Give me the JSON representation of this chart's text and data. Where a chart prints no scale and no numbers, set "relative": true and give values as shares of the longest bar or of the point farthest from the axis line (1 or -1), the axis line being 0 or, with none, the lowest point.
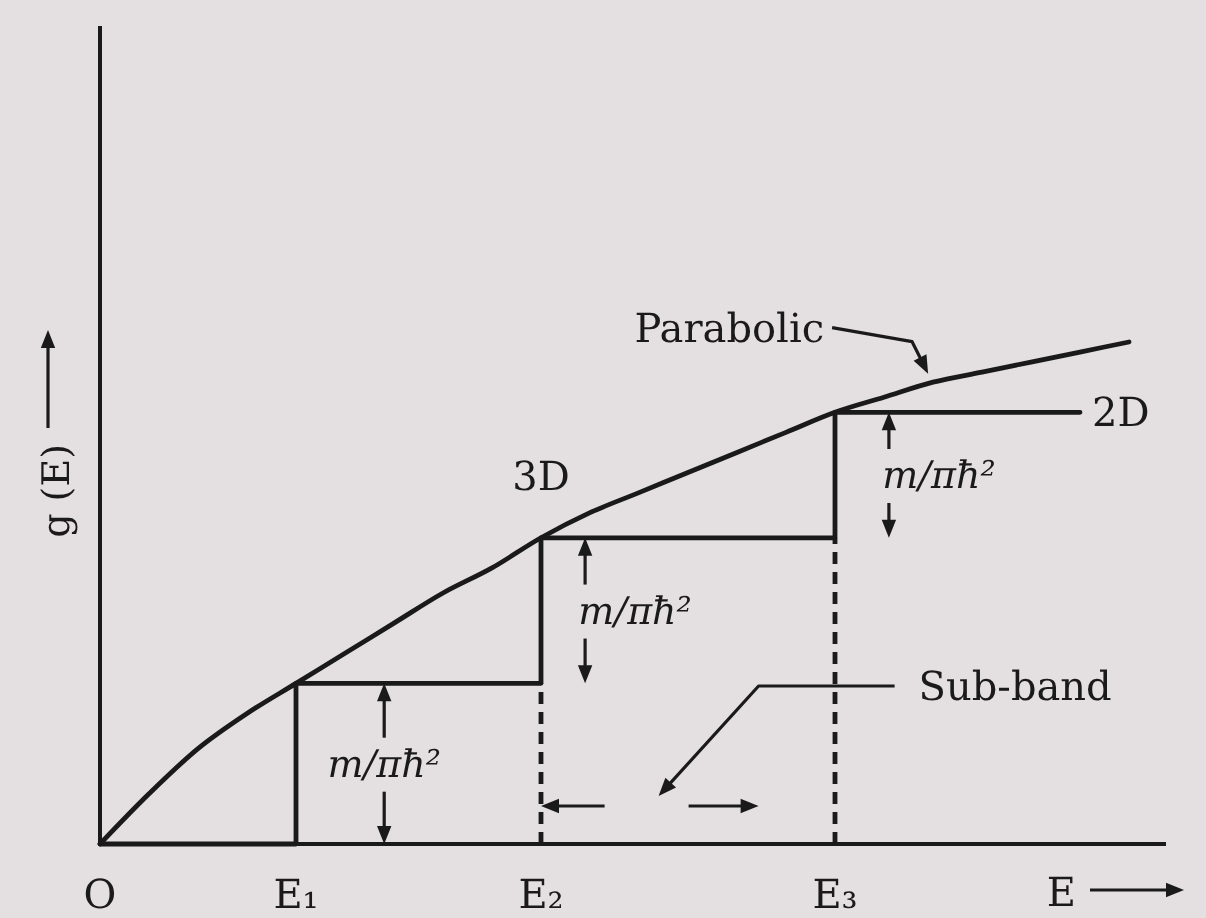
{
  "chart_data": {
    "type": "line",
    "relative": true,
    "xlabel": "E",
    "ylabel": "g (E)",
    "categories": [
      "O",
      null,
      null,
      null,
      "E₁",
      null,
      null,
      null,
      null,
      "E₂",
      null,
      null,
      null,
      null,
      null,
      "E₃",
      null,
      null,
      null,
      null,
      null,
      null
    ],
    "series": [
      {
        "name": "3D",
        "color": "#1a1a1a",
        "values": [
          0,
          0.1,
          0.19,
          0.26,
          0.32,
          0.38,
          0.44,
          0.5,
          0.55,
          0.61,
          0.66,
          0.7,
          0.74,
          0.78,
          0.82,
          0.86,
          0.89,
          0.92,
          0.94,
          0.96,
          0.98,
          1
        ]
      },
      {
        "name": "2D",
        "type": "step",
        "color": "#1a1a1a",
        "values": [
          0,
          0,
          0,
          0,
          0.32,
          0.32,
          0.32,
          0.32,
          0.32,
          0.61,
          0.61,
          0.61,
          0.61,
          0.61,
          0.61,
          0.86,
          0.86,
          0.86,
          0.86,
          0.86,
          0.86,
          null
        ]
      },
      {
        "color": "#1a1a1a",
        "line_style": "dashed",
        "x": [
          "E₂",
          "E₂"
        ],
        "values": [
          0,
          0.32
        ]
      },
      {
        "color": "#1a1a1a",
        "line_style": "dashed",
        "x": [
          "E₃",
          "E₃"
        ],
        "values": [
          0,
          0.61
        ]
      }
    ],
    "annotations": [
      "Parabolic",
      "m/πħ²",
      "m/πħ²",
      "m/πħ²",
      "Sub-band"
    ]
  }
}
